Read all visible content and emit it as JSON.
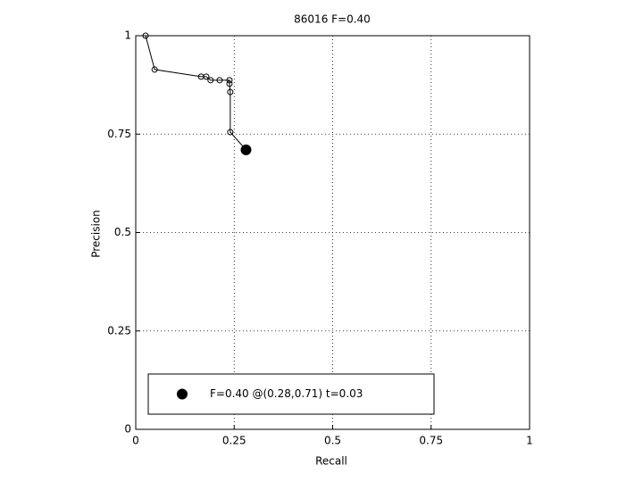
{
  "chart_data": {
    "type": "line",
    "title": "86016 F=0.40",
    "xlabel": "Recall",
    "ylabel": "Precision",
    "xlim": [
      0,
      1
    ],
    "ylim": [
      0,
      1
    ],
    "xticks": [
      0,
      0.25,
      0.5,
      0.75,
      1
    ],
    "yticks": [
      0,
      0.25,
      0.5,
      0.75,
      1
    ],
    "grid": true,
    "legend": "lower left",
    "series": [
      {
        "color": "#000000",
        "marker": "open",
        "x": [
          0.025,
          0.048,
          0.166,
          0.179,
          0.19,
          0.213,
          0.238,
          0.238,
          0.24,
          0.24,
          0.28
        ],
        "values": [
          1.0,
          0.914,
          0.896,
          0.896,
          0.887,
          0.887,
          0.887,
          0.878,
          0.857,
          0.755,
          0.71
        ]
      },
      {
        "name": "F=0.40 @(0.28,0.71) t=0.03",
        "color": "#000000",
        "marker": "filled",
        "x": [
          0.28
        ],
        "values": [
          0.71
        ]
      }
    ]
  }
}
